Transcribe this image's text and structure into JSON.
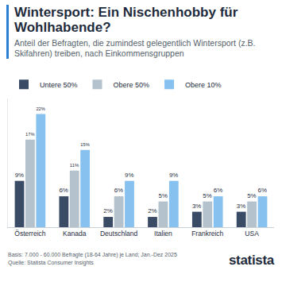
{
  "chart_data": {
    "type": "bar",
    "title": "Wintersport: Ein Nischenhobby für Wohlhabende?",
    "subtitle": "Anteil der Befragten, die zumindest gelegentlich Wintersport (z.B. Skifahren) treiben, nach Einkommensgruppen",
    "categories": [
      "Österreich",
      "Kanada",
      "Deutschland",
      "Italien",
      "Frankreich",
      "USA"
    ],
    "series": [
      {
        "name": "Untere 50%",
        "color": "#3a4b66",
        "values": [
          9,
          6,
          2,
          2,
          3,
          3
        ],
        "value_labels": [
          "9%",
          "6%",
          "2%",
          "2%",
          "3%",
          "3%"
        ]
      },
      {
        "name": "Obere 50%",
        "color": "#b3c2cc",
        "values": [
          17,
          11,
          6,
          5,
          5,
          5
        ],
        "value_labels": [
          "17%",
          "11%",
          "6%",
          "5%",
          "5%",
          "5%"
        ]
      },
      {
        "name": "Obere 10%",
        "color": "#86c1f0",
        "values": [
          22,
          15,
          9,
          9,
          6,
          6
        ],
        "value_labels": [
          "22%",
          "15%",
          "9%",
          "9%",
          "6%",
          "6%"
        ]
      }
    ],
    "ylim": [
      0,
      25
    ],
    "grid": false,
    "legend": "top-left",
    "data_labels": true,
    "tick_labels": "x",
    "footer": [
      "Basis: 7.000 - 60.000 Befragte (18-64 Jahre) je Land; Jan.-Dez 2025",
      "Quelle: Statista Consumer Insights"
    ],
    "logo": "statista"
  }
}
